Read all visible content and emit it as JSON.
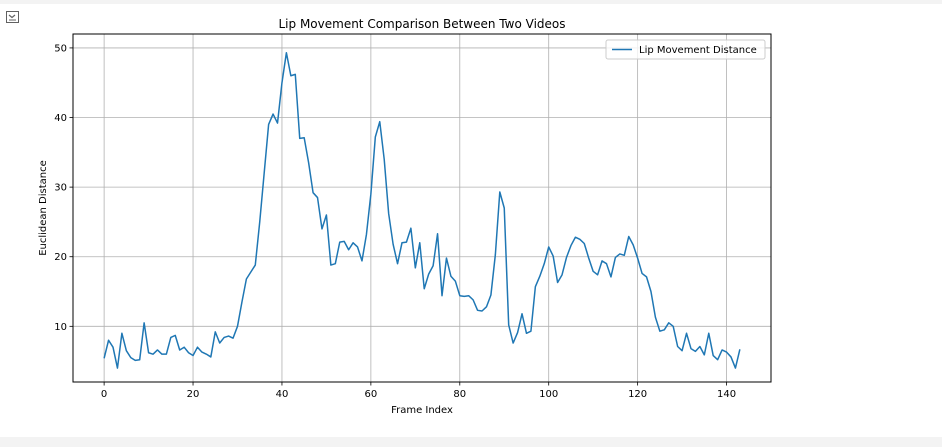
{
  "output_toggle_icon": "output-toggle-icon",
  "colors": {
    "line": "#1f77b4",
    "grid": "#b0b0b0",
    "axes": "#000000",
    "legend_border": "#cccccc"
  },
  "chart_data": {
    "type": "line",
    "title": "Lip Movement Comparison Between Two Videos",
    "xlabel": "Frame Index",
    "ylabel": "Euclidean Distance",
    "xlim": [
      -7,
      150
    ],
    "ylim": [
      2,
      52
    ],
    "xticks": [
      0,
      20,
      40,
      60,
      80,
      100,
      120,
      140
    ],
    "yticks": [
      10,
      20,
      30,
      40,
      50
    ],
    "grid": true,
    "legend_position": "upper right",
    "series": [
      {
        "name": "Lip Movement Distance",
        "color": "#1f77b4",
        "x": [
          0,
          1,
          2,
          3,
          4,
          5,
          6,
          7,
          8,
          9,
          10,
          11,
          12,
          13,
          14,
          15,
          16,
          17,
          18,
          19,
          20,
          21,
          22,
          23,
          24,
          25,
          26,
          27,
          28,
          29,
          30,
          31,
          32,
          33,
          34,
          35,
          36,
          37,
          38,
          39,
          40,
          41,
          42,
          43,
          44,
          45,
          46,
          47,
          48,
          49,
          50,
          51,
          52,
          53,
          54,
          55,
          56,
          57,
          58,
          59,
          60,
          61,
          62,
          63,
          64,
          65,
          66,
          67,
          68,
          69,
          70,
          71,
          72,
          73,
          74,
          75,
          76,
          77,
          78,
          79,
          80,
          81,
          82,
          83,
          84,
          85,
          86,
          87,
          88,
          89,
          90,
          91,
          92,
          93,
          94,
          95,
          96,
          97,
          98,
          99,
          100,
          101,
          102,
          103,
          104,
          105,
          106,
          107,
          108,
          109,
          110,
          111,
          112,
          113,
          114,
          115,
          116,
          117,
          118,
          119,
          120,
          121,
          122,
          123,
          124,
          125,
          126,
          127,
          128,
          129,
          130,
          131,
          132,
          133,
          134,
          135,
          136,
          137,
          138,
          139,
          140,
          141,
          142,
          143
        ],
        "y": [
          5.4,
          8.0,
          7.0,
          4.0,
          9.0,
          6.5,
          5.5,
          5.1,
          5.2,
          10.5,
          6.2,
          6.0,
          6.6,
          6.0,
          6.0,
          8.4,
          8.7,
          6.6,
          7.0,
          6.2,
          5.8,
          7.0,
          6.3,
          6.0,
          5.6,
          9.2,
          7.6,
          8.4,
          8.6,
          8.3,
          10.0,
          13.5,
          16.8,
          17.8,
          18.8,
          25.0,
          32.0,
          39.0,
          40.5,
          39.2,
          45.0,
          49.3,
          46.0,
          46.2,
          37.0,
          37.1,
          33.5,
          29.2,
          28.5,
          24.0,
          26.0,
          18.8,
          19.0,
          22.1,
          22.2,
          21.0,
          22.0,
          21.4,
          19.4,
          23.2,
          29.0,
          37.2,
          39.4,
          34.0,
          26.2,
          21.8,
          19.0,
          22.0,
          22.1,
          24.1,
          18.4,
          22.0,
          15.4,
          17.5,
          18.7,
          23.3,
          14.4,
          19.8,
          17.2,
          16.5,
          14.4,
          14.3,
          14.4,
          13.8,
          12.3,
          12.2,
          12.8,
          14.5,
          20.3,
          29.3,
          27.0,
          10.2,
          7.6,
          9.1,
          11.8,
          9.0,
          9.3,
          15.7,
          17.2,
          19.0,
          21.4,
          20.1,
          16.3,
          17.4,
          19.9,
          21.6,
          22.8,
          22.5,
          21.9,
          19.8,
          17.9,
          17.4,
          19.4,
          19.0,
          17.1,
          19.9,
          20.4,
          20.2,
          22.9,
          21.7,
          19.8,
          17.6,
          17.1,
          15.0,
          11.3,
          9.3,
          9.5,
          10.5,
          10.0,
          7.1,
          6.5,
          9.0,
          6.8,
          6.4,
          7.1,
          5.9,
          9.0,
          5.8,
          5.2,
          6.6,
          6.3,
          5.6,
          4.0,
          6.7
        ]
      }
    ]
  }
}
